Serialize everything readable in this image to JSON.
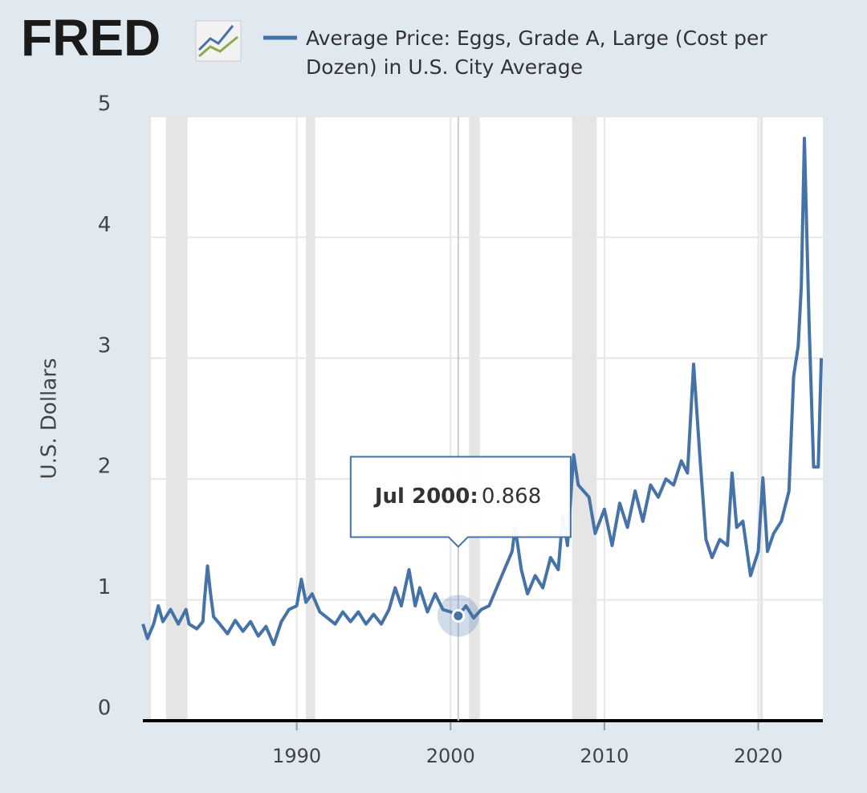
{
  "chart_data": {
    "type": "line",
    "logo": "FRED",
    "ylabel": "U.S. Dollars",
    "series": [
      {
        "name": "Average Price: Eggs, Grade A, Large (Cost per Dozen) in U.S. City Average",
        "color": "#4572a7",
        "values": [
          0.8,
          0.68,
          0.8,
          0.95,
          0.82,
          0.92,
          0.8,
          0.92,
          0.8,
          0.76,
          0.82,
          1.0,
          1.28,
          1.05,
          0.86,
          0.8,
          0.72,
          0.83,
          0.74,
          0.82,
          0.7,
          0.78,
          0.63,
          0.82,
          0.92,
          0.95,
          1.17,
          0.98,
          1.05,
          0.9,
          0.85,
          0.8,
          0.9,
          0.82,
          0.9,
          0.8,
          0.88,
          0.8,
          0.92,
          1.1,
          0.95,
          1.25,
          0.95,
          1.1,
          0.9,
          1.05,
          0.92,
          0.9,
          0.868,
          0.95,
          0.85,
          0.92,
          0.95,
          1.1,
          1.25,
          1.4,
          1.6,
          1.25,
          1.05,
          1.2,
          1.1,
          1.35,
          1.25,
          1.7,
          1.45,
          2.2,
          1.95,
          1.85,
          1.55,
          1.75,
          1.45,
          1.8,
          1.6,
          1.9,
          1.65,
          1.95,
          1.85,
          2.0,
          1.95,
          2.15,
          2.05,
          2.95,
          2.2,
          1.5,
          1.35,
          1.5,
          1.45,
          2.05,
          1.6,
          1.65,
          1.2,
          1.4,
          2.01,
          1.4,
          1.55,
          1.65,
          1.9,
          2.85,
          3.1,
          3.6,
          4.82,
          3.3,
          2.1,
          2.1,
          3.0
        ]
      }
    ],
    "x": [
      1980.0,
      1980.3,
      1980.7,
      1981.0,
      1981.3,
      1981.8,
      1982.3,
      1982.8,
      1983.0,
      1983.5,
      1983.9,
      1984.0,
      1984.2,
      1984.4,
      1984.6,
      1985.0,
      1985.5,
      1986.0,
      1986.5,
      1987.0,
      1987.5,
      1988.0,
      1988.5,
      1989.0,
      1989.5,
      1990.0,
      1990.3,
      1990.6,
      1991.0,
      1991.5,
      1992.0,
      1992.5,
      1993.0,
      1993.5,
      1994.0,
      1994.5,
      1995.0,
      1995.5,
      1996.0,
      1996.4,
      1996.8,
      1997.3,
      1997.7,
      1998.0,
      1998.5,
      1999.0,
      1999.5,
      2000.0,
      2000.5,
      2001.0,
      2001.5,
      2002.0,
      2002.5,
      2003.0,
      2003.5,
      2004.0,
      2004.2,
      2004.6,
      2005.0,
      2005.5,
      2006.0,
      2006.5,
      2007.0,
      2007.3,
      2007.6,
      2008.0,
      2008.3,
      2009.0,
      2009.4,
      2010.0,
      2010.5,
      2011.0,
      2011.5,
      2012.0,
      2012.5,
      2013.0,
      2013.5,
      2014.0,
      2014.5,
      2015.0,
      2015.4,
      2015.8,
      2016.2,
      2016.6,
      2017.0,
      2017.5,
      2018.0,
      2018.3,
      2018.6,
      2019.0,
      2019.5,
      2020.0,
      2020.3,
      2020.6,
      2021.0,
      2021.5,
      2022.0,
      2022.3,
      2022.6,
      2022.8,
      2023.0,
      2023.3,
      2023.6,
      2023.9,
      2024.1
    ],
    "recessions": [
      [
        1980.0,
        1980.5
      ],
      [
        1981.5,
        1982.9
      ],
      [
        1990.6,
        1991.2
      ],
      [
        2001.2,
        2001.9
      ],
      [
        2007.9,
        2009.5
      ],
      [
        2020.1,
        2020.3
      ]
    ],
    "xlim": [
      1980,
      2024.2
    ],
    "xticks": [
      1990,
      2000,
      2010,
      2020
    ],
    "ylim": [
      0,
      5
    ],
    "yticks": [
      0,
      1,
      2,
      3,
      4,
      5
    ],
    "grid": true,
    "tooltip": {
      "label": "Jul 2000:",
      "x": 2000.5,
      "value": 0.868
    }
  }
}
